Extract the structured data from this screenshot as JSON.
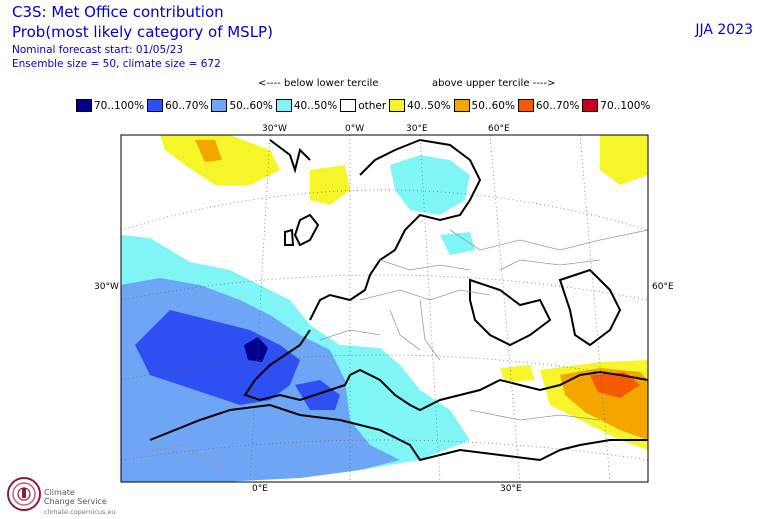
{
  "header": {
    "line1": "C3S: Met Office contribution",
    "line2": "Prob(most likely category of MSLP)",
    "line3": "Nominal forecast start: 01/05/23",
    "line4": "Ensemble size = 50, climate size = 672",
    "season": "JJA 2023"
  },
  "tercile_notes": {
    "below": "<---- below lower tercile",
    "above": "above upper tercile ---->"
  },
  "legend": [
    {
      "label": "70..100%",
      "color": "#00008b"
    },
    {
      "label": "60..70%",
      "color": "#2e4ff2"
    },
    {
      "label": "50..60%",
      "color": "#6ea5f5"
    },
    {
      "label": "40..50%",
      "color": "#7ff5f5"
    },
    {
      "label": "other",
      "color": "#ffffff"
    },
    {
      "label": "40..50%",
      "color": "#f5f52a"
    },
    {
      "label": "50..60%",
      "color": "#f5a500"
    },
    {
      "label": "60..70%",
      "color": "#f55a00"
    },
    {
      "label": "70..100%",
      "color": "#c8001e"
    }
  ],
  "axis_labels": {
    "top_30w": "30°W",
    "top_0w": "0°W",
    "top_30e": "30°E",
    "top_60e": "60°E",
    "left_30w": "30°W",
    "right_60e": "60°E",
    "bottom_0e": "0°E",
    "bottom_30e": "30°E"
  },
  "logo": {
    "line1": "Climate",
    "line2": "Change Service",
    "url": "climate.copernicus.eu"
  }
}
